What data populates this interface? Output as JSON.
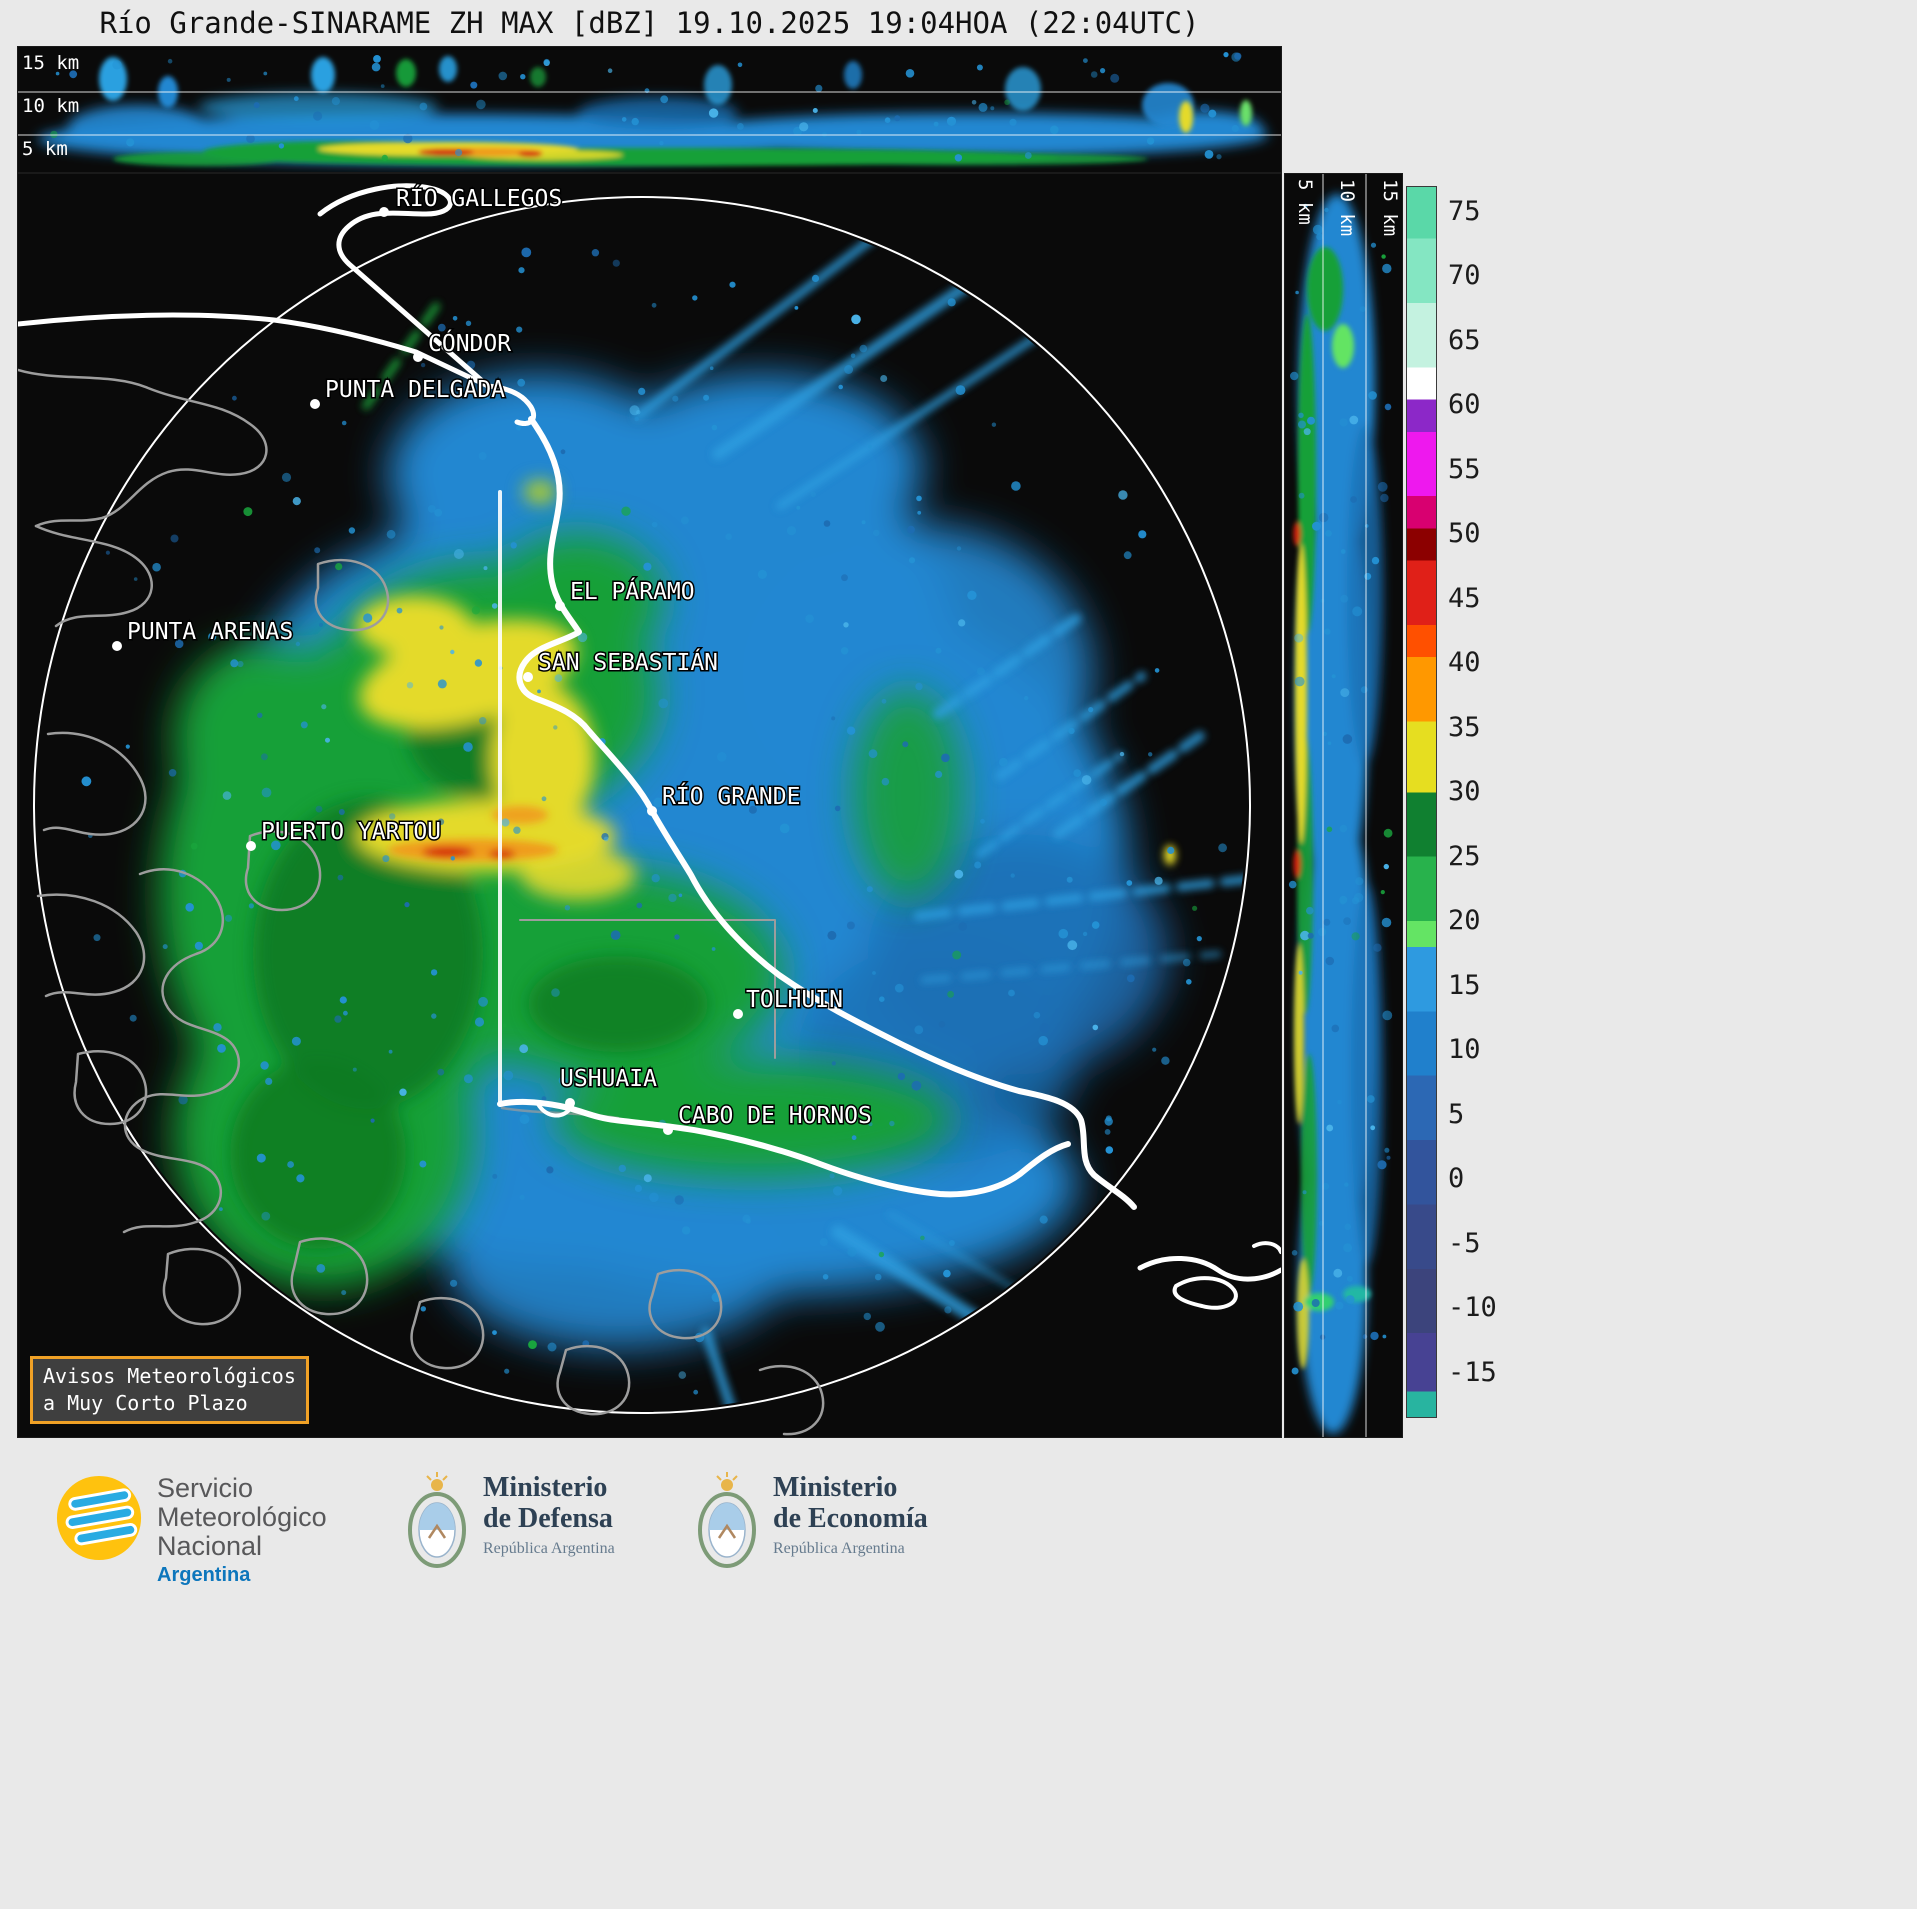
{
  "title": "Río Grande-SINARAME ZH MAX [dBZ] 19.10.2025 19:04HOA (22:04UTC)",
  "top_cross_section": {
    "altitude_labels": [
      "15 km",
      "10 km",
      "5 km"
    ]
  },
  "right_cross_section": {
    "altitude_labels": [
      "5 km",
      "10 km",
      "15 km"
    ]
  },
  "colorbar": {
    "vmax": 77,
    "vmin": -18.5,
    "tick_values": [
      75,
      70,
      65,
      60,
      55,
      50,
      45,
      40,
      35,
      30,
      25,
      20,
      15,
      10,
      5,
      0,
      -5,
      -10,
      -15
    ],
    "segments": [
      {
        "hi": 77,
        "lo": 73,
        "color": "#5ad8a8"
      },
      {
        "hi": 73,
        "lo": 68,
        "color": "#84e6c2"
      },
      {
        "hi": 68,
        "lo": 63,
        "color": "#c4f2e0"
      },
      {
        "hi": 63,
        "lo": 60.5,
        "color": "#ffffff"
      },
      {
        "hi": 60.5,
        "lo": 58,
        "color": "#8c28c8"
      },
      {
        "hi": 58,
        "lo": 53,
        "color": "#ee18ee"
      },
      {
        "hi": 53,
        "lo": 50.5,
        "color": "#d80070"
      },
      {
        "hi": 50.5,
        "lo": 48,
        "color": "#8c0000"
      },
      {
        "hi": 48,
        "lo": 43,
        "color": "#e02018"
      },
      {
        "hi": 43,
        "lo": 40.5,
        "color": "#ff5000"
      },
      {
        "hi": 40.5,
        "lo": 35.5,
        "color": "#ff9800"
      },
      {
        "hi": 35.5,
        "lo": 30,
        "color": "#e6de20"
      },
      {
        "hi": 30,
        "lo": 25,
        "color": "#108030"
      },
      {
        "hi": 25,
        "lo": 20,
        "color": "#28b24c"
      },
      {
        "hi": 20,
        "lo": 18,
        "color": "#64e464"
      },
      {
        "hi": 18,
        "lo": 13,
        "color": "#2e9ae0"
      },
      {
        "hi": 13,
        "lo": 8,
        "color": "#2080cc"
      },
      {
        "hi": 8,
        "lo": 3,
        "color": "#2c68b4"
      },
      {
        "hi": 3,
        "lo": -2,
        "color": "#32549c"
      },
      {
        "hi": -2,
        "lo": -7,
        "color": "#384a8a"
      },
      {
        "hi": -7,
        "lo": -12,
        "color": "#3c447c"
      },
      {
        "hi": -12,
        "lo": -16.5,
        "color": "#474293"
      },
      {
        "hi": -16.5,
        "lo": -18.5,
        "color": "#28b4a0"
      }
    ]
  },
  "map": {
    "cities": [
      {
        "name": "RÍO GALLEGOS"
      },
      {
        "name": "CÓNDOR"
      },
      {
        "name": "PUNTA DELGADA"
      },
      {
        "name": "EL PÁRAMO"
      },
      {
        "name": "SAN SEBASTIÁN"
      },
      {
        "name": "PUNTA ARENAS"
      },
      {
        "name": "RÍO GRANDE"
      },
      {
        "name": "PUERTO YARTOU"
      },
      {
        "name": "TOLHUIN"
      },
      {
        "name": "USHUAIA"
      },
      {
        "name": "CABO DE HORNOS"
      }
    ]
  },
  "warning_box": {
    "line1": "Avisos Meteorológicos",
    "line2": "a Muy Corto Plazo"
  },
  "footer": {
    "smn": {
      "name_lines": [
        "Servicio",
        "Meteorológico",
        "Nacional"
      ],
      "country": "Argentina"
    },
    "defensa": {
      "title_line1": "Ministerio",
      "title_line2": "de Defensa",
      "subtitle": "República Argentina"
    },
    "economia": {
      "title_line1": "Ministerio",
      "title_line2": "de Economía",
      "subtitle": "República Argentina"
    }
  }
}
